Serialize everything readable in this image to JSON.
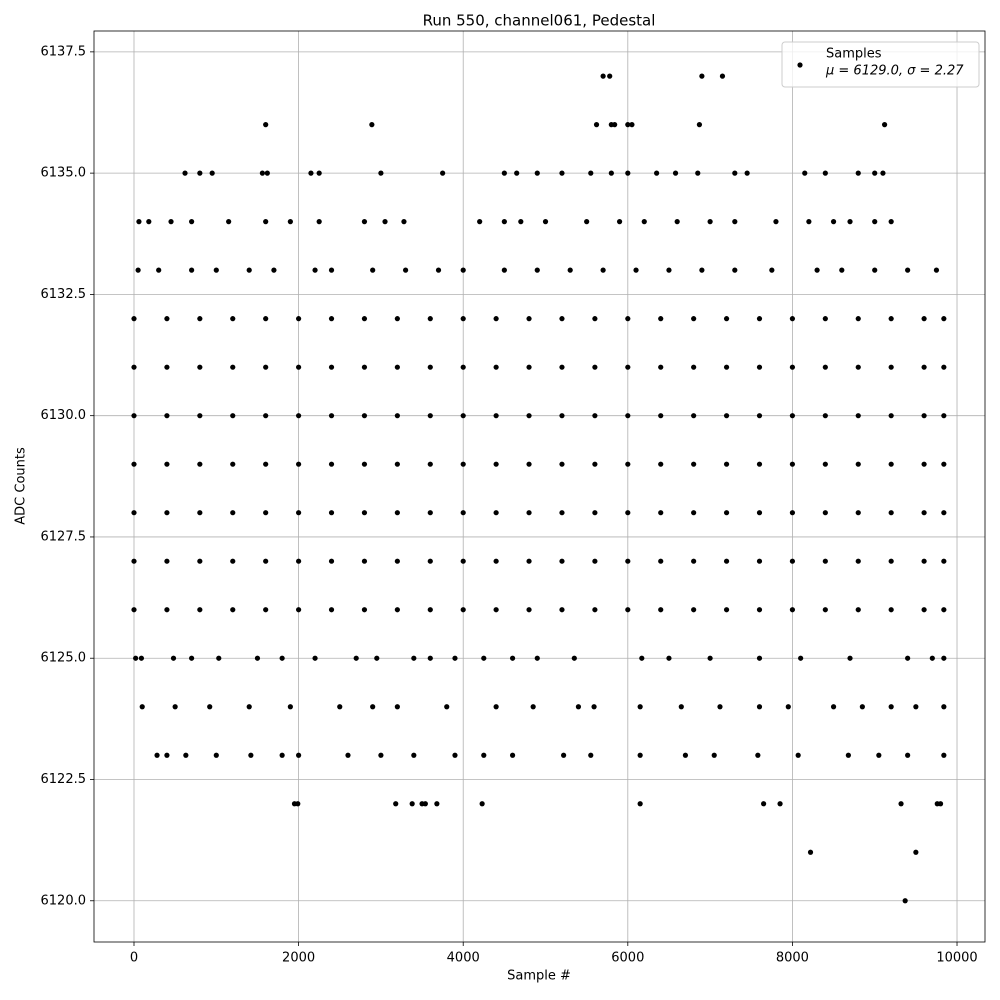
{
  "chart_data": {
    "type": "scatter",
    "title": "Run 550, channel061, Pedestal",
    "x_label": "Sample #",
    "y_label": "ADC Counts",
    "legend_position": "upper right",
    "grid": true,
    "xlim": [
      -486,
      10340
    ],
    "ylim": [
      6119.15,
      6137.93
    ],
    "xticks": [
      0,
      2000,
      4000,
      6000,
      8000,
      10000
    ],
    "yticks": [
      {
        "value": 6120,
        "label": "6120.0"
      },
      6122.5,
      {
        "value": 6125,
        "label": "6125.0"
      },
      6127.5,
      {
        "value": 6130,
        "label": "6130.0"
      },
      6132.5,
      {
        "value": 6135,
        "label": "6135.0"
      },
      6137.5
    ],
    "series": [
      {
        "name": "Samples",
        "stats_label": "μ = 6129.0, σ = 2.27",
        "color": "#000000",
        "x": [
          0,
          400,
          800,
          1200,
          1600,
          2000,
          2400,
          2800,
          3200,
          3600,
          4000,
          4400,
          4800,
          5200,
          5600,
          6000,
          6400,
          6800,
          7200,
          7600,
          8000,
          8400,
          8800,
          9200,
          9600,
          9840,
          0,
          400,
          800,
          1200,
          1600,
          2000,
          2400,
          2800,
          3200,
          3600,
          4000,
          4400,
          4800,
          5200,
          5600,
          6000,
          6400,
          6800,
          7200,
          7600,
          8000,
          8400,
          8800,
          9200,
          9600,
          9840,
          0,
          400,
          800,
          1200,
          1600,
          2000,
          2400,
          2800,
          3200,
          3600,
          4000,
          4400,
          4800,
          5200,
          5600,
          6000,
          6400,
          6800,
          7200,
          7600,
          8000,
          8400,
          8800,
          9200,
          9600,
          9840,
          0,
          400,
          800,
          1200,
          1600,
          2000,
          2400,
          2800,
          3200,
          3600,
          4000,
          4400,
          4800,
          5200,
          5600,
          6000,
          6400,
          6800,
          7200,
          7600,
          8000,
          8400,
          8800,
          9200,
          9600,
          9840,
          0,
          400,
          800,
          1200,
          1600,
          2000,
          2400,
          2800,
          3200,
          3600,
          4000,
          4400,
          4800,
          5200,
          5600,
          6000,
          6400,
          6800,
          7200,
          7600,
          8000,
          8400,
          8800,
          9200,
          9600,
          9840,
          0,
          400,
          800,
          1200,
          1600,
          2000,
          2400,
          2800,
          3200,
          3600,
          4000,
          4400,
          4800,
          5200,
          5600,
          6000,
          6400,
          6800,
          7200,
          7600,
          8000,
          8400,
          8800,
          9200,
          9600,
          9840,
          0,
          400,
          800,
          1200,
          1600,
          2000,
          2400,
          2800,
          3200,
          3600,
          4000,
          4400,
          4800,
          5200,
          5600,
          6000,
          6400,
          6800,
          7200,
          7600,
          8000,
          8400,
          8800,
          9200,
          9600,
          9840,
          20,
          90,
          480,
          700,
          1030,
          1500,
          1800,
          2200,
          2700,
          2950,
          3400,
          3600,
          3900,
          4250,
          4600,
          4900,
          5350,
          6170,
          6500,
          7000,
          7600,
          8100,
          8700,
          9400,
          9700,
          9840,
          100,
          500,
          920,
          1400,
          1900,
          2500,
          2900,
          3200,
          3800,
          4400,
          4850,
          5400,
          5590,
          6150,
          6650,
          7120,
          7600,
          7950,
          8500,
          8850,
          9200,
          9500,
          9840,
          280,
          400,
          630,
          1000,
          1420,
          1800,
          2000,
          2600,
          3000,
          3400,
          3900,
          4250,
          4600,
          5220,
          5550,
          6150,
          6700,
          7050,
          7580,
          8070,
          8680,
          9050,
          9400,
          9840,
          50,
          300,
          700,
          1000,
          1400,
          1700,
          2200,
          2400,
          2900,
          3300,
          3700,
          4000,
          4500,
          4900,
          5300,
          5700,
          6100,
          6500,
          6900,
          7300,
          7750,
          8300,
          8600,
          9000,
          9400,
          9750,
          60,
          180,
          450,
          700,
          1150,
          1600,
          1900,
          2250,
          2800,
          3050,
          3280,
          4200,
          4500,
          4700,
          5000,
          5500,
          5900,
          6200,
          6600,
          7000,
          7300,
          7800,
          8200,
          8500,
          8700,
          9000,
          9200,
          620,
          800,
          950,
          1560,
          1620,
          2150,
          2250,
          3000,
          3750,
          4500,
          4650,
          4900,
          5200,
          5550,
          5800,
          6000,
          6350,
          6580,
          6850,
          7300,
          7450,
          8150,
          8400,
          8800,
          9000,
          9100,
          9370,
          8220,
          9500,
          1950,
          1990,
          3180,
          3380,
          3500,
          3540,
          3680,
          4230,
          6150,
          7650,
          7850,
          9320,
          9760,
          9800,
          5700,
          5780,
          6900,
          7150,
          1600,
          2890,
          5620,
          5800,
          5840,
          6000,
          6050,
          6870,
          9120
        ],
        "values": [
          6126,
          6126,
          6126,
          6126,
          6126,
          6126,
          6126,
          6126,
          6126,
          6126,
          6126,
          6126,
          6126,
          6126,
          6126,
          6126,
          6126,
          6126,
          6126,
          6126,
          6126,
          6126,
          6126,
          6126,
          6126,
          6126,
          6127,
          6127,
          6127,
          6127,
          6127,
          6127,
          6127,
          6127,
          6127,
          6127,
          6127,
          6127,
          6127,
          6127,
          6127,
          6127,
          6127,
          6127,
          6127,
          6127,
          6127,
          6127,
          6127,
          6127,
          6127,
          6127,
          6128,
          6128,
          6128,
          6128,
          6128,
          6128,
          6128,
          6128,
          6128,
          6128,
          6128,
          6128,
          6128,
          6128,
          6128,
          6128,
          6128,
          6128,
          6128,
          6128,
          6128,
          6128,
          6128,
          6128,
          6128,
          6128,
          6129,
          6129,
          6129,
          6129,
          6129,
          6129,
          6129,
          6129,
          6129,
          6129,
          6129,
          6129,
          6129,
          6129,
          6129,
          6129,
          6129,
          6129,
          6129,
          6129,
          6129,
          6129,
          6129,
          6129,
          6129,
          6129,
          6130,
          6130,
          6130,
          6130,
          6130,
          6130,
          6130,
          6130,
          6130,
          6130,
          6130,
          6130,
          6130,
          6130,
          6130,
          6130,
          6130,
          6130,
          6130,
          6130,
          6130,
          6130,
          6130,
          6130,
          6130,
          6130,
          6131,
          6131,
          6131,
          6131,
          6131,
          6131,
          6131,
          6131,
          6131,
          6131,
          6131,
          6131,
          6131,
          6131,
          6131,
          6131,
          6131,
          6131,
          6131,
          6131,
          6131,
          6131,
          6131,
          6131,
          6131,
          6131,
          6132,
          6132,
          6132,
          6132,
          6132,
          6132,
          6132,
          6132,
          6132,
          6132,
          6132,
          6132,
          6132,
          6132,
          6132,
          6132,
          6132,
          6132,
          6132,
          6132,
          6132,
          6132,
          6132,
          6132,
          6132,
          6132,
          6125,
          6125,
          6125,
          6125,
          6125,
          6125,
          6125,
          6125,
          6125,
          6125,
          6125,
          6125,
          6125,
          6125,
          6125,
          6125,
          6125,
          6125,
          6125,
          6125,
          6125,
          6125,
          6125,
          6125,
          6125,
          6125,
          6124,
          6124,
          6124,
          6124,
          6124,
          6124,
          6124,
          6124,
          6124,
          6124,
          6124,
          6124,
          6124,
          6124,
          6124,
          6124,
          6124,
          6124,
          6124,
          6124,
          6124,
          6124,
          6124,
          6123,
          6123,
          6123,
          6123,
          6123,
          6123,
          6123,
          6123,
          6123,
          6123,
          6123,
          6123,
          6123,
          6123,
          6123,
          6123,
          6123,
          6123,
          6123,
          6123,
          6123,
          6123,
          6123,
          6123,
          6133,
          6133,
          6133,
          6133,
          6133,
          6133,
          6133,
          6133,
          6133,
          6133,
          6133,
          6133,
          6133,
          6133,
          6133,
          6133,
          6133,
          6133,
          6133,
          6133,
          6133,
          6133,
          6133,
          6133,
          6133,
          6133,
          6134,
          6134,
          6134,
          6134,
          6134,
          6134,
          6134,
          6134,
          6134,
          6134,
          6134,
          6134,
          6134,
          6134,
          6134,
          6134,
          6134,
          6134,
          6134,
          6134,
          6134,
          6134,
          6134,
          6134,
          6134,
          6134,
          6134,
          6135,
          6135,
          6135,
          6135,
          6135,
          6135,
          6135,
          6135,
          6135,
          6135,
          6135,
          6135,
          6135,
          6135,
          6135,
          6135,
          6135,
          6135,
          6135,
          6135,
          6135,
          6135,
          6135,
          6135,
          6135,
          6135,
          6120,
          6121,
          6121,
          6122,
          6122,
          6122,
          6122,
          6122,
          6122,
          6122,
          6122,
          6122,
          6122,
          6122,
          6122,
          6122,
          6122,
          6137,
          6137,
          6137,
          6137,
          6136,
          6136,
          6136,
          6136,
          6136,
          6136,
          6136,
          6136,
          6136
        ]
      }
    ]
  }
}
